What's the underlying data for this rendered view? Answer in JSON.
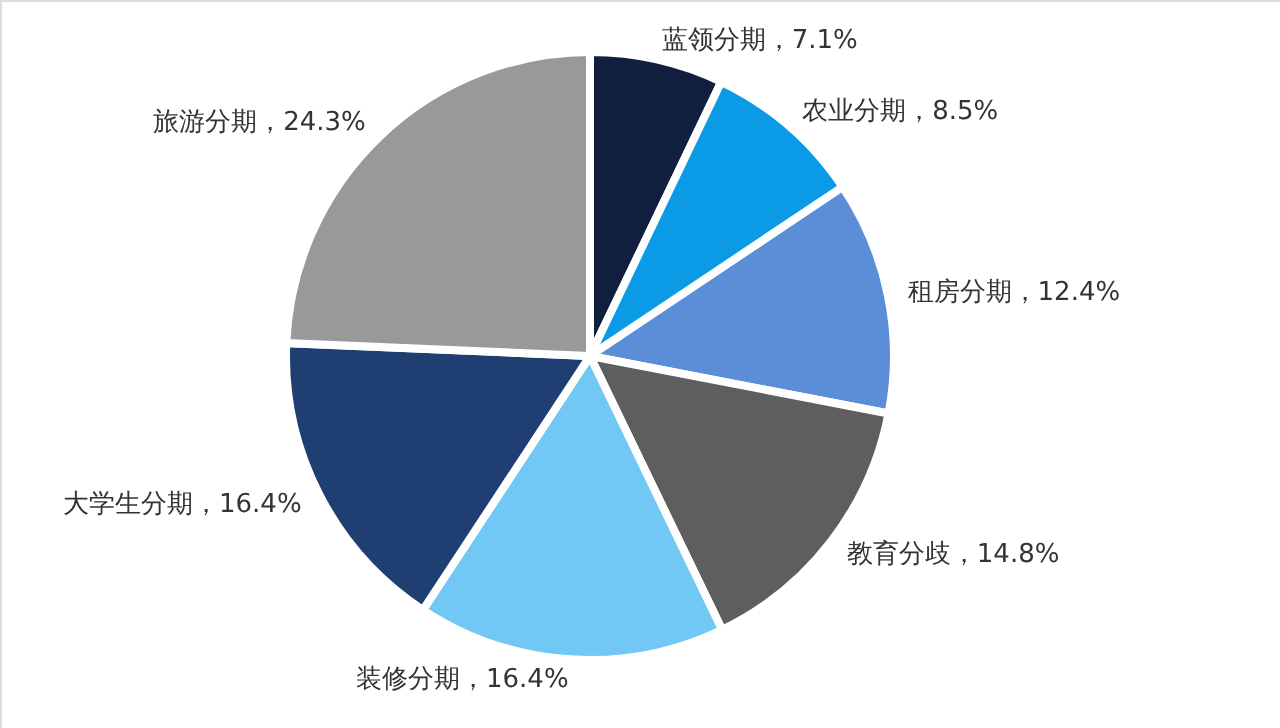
{
  "chart_data": {
    "type": "pie",
    "categories": [
      "蓝领分期",
      "农业分期",
      "租房分期",
      "教育分歧",
      "装修分期",
      "大学生分期",
      "旅游分期"
    ],
    "values": [
      7.1,
      8.5,
      12.4,
      14.8,
      16.4,
      16.4,
      24.3
    ],
    "value_labels": [
      "，7.1%",
      "，8.5%",
      "，12.4%",
      "，14.8%",
      "，16.4%",
      "，16.4%",
      "，24.3%"
    ],
    "colors": [
      "#0f1f3d",
      "#0b9be6",
      "#5b8ed6",
      "#5e5e5e",
      "#72c8f5",
      "#1f3e72",
      "#999999"
    ]
  }
}
